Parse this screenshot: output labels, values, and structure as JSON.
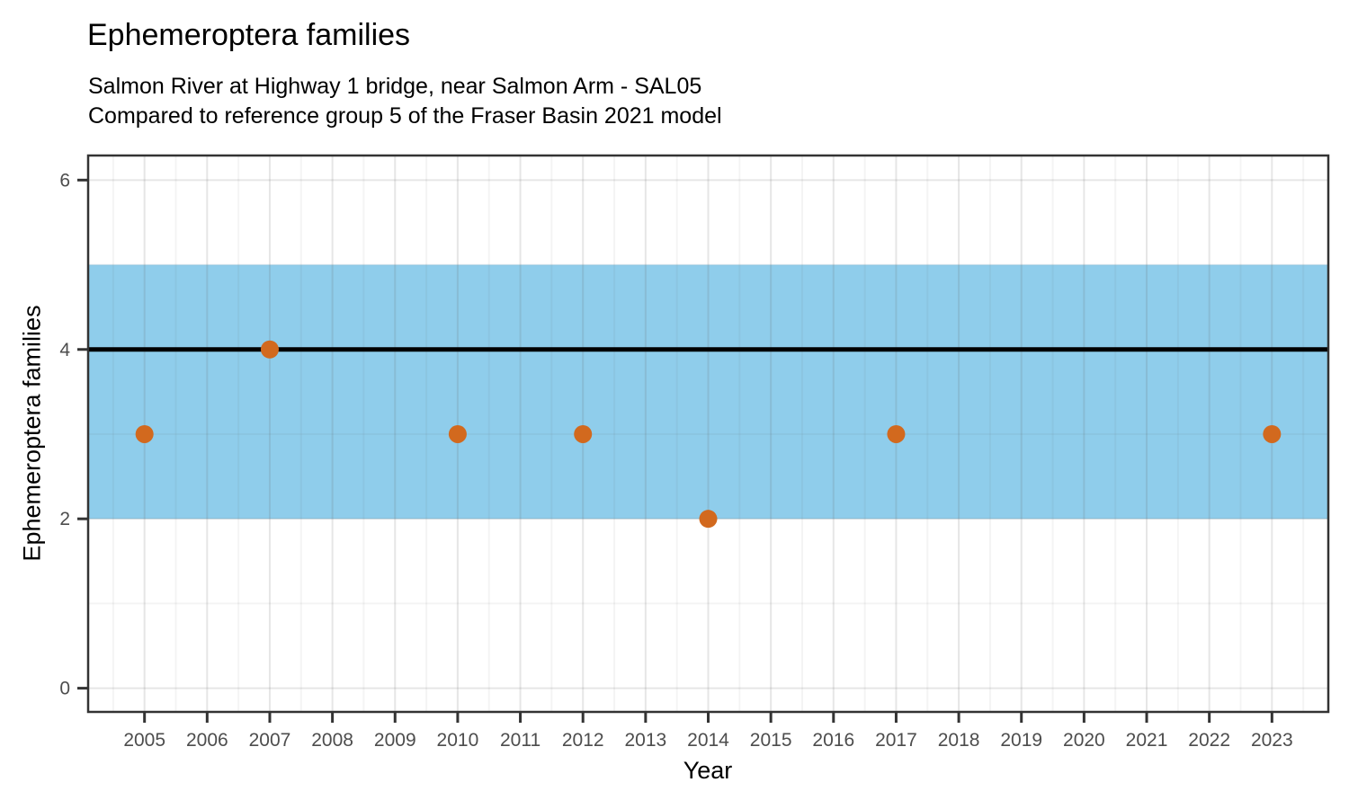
{
  "chart_data": {
    "type": "scatter",
    "title": "Ephemeroptera families",
    "subtitle": [
      "Salmon River at Highway 1 bridge, near Salmon Arm - SAL05",
      "Compared to reference group 5 of the Fraser Basin 2021 model"
    ],
    "xlabel": "Year",
    "ylabel": "Ephemeroptera families",
    "x_ticks": [
      2005,
      2006,
      2007,
      2008,
      2009,
      2010,
      2011,
      2012,
      2013,
      2014,
      2015,
      2016,
      2017,
      2018,
      2019,
      2020,
      2021,
      2022,
      2023
    ],
    "y_ticks": [
      0,
      2,
      4,
      6
    ],
    "xlim": [
      2004.1,
      2023.9
    ],
    "ylim": [
      -0.28,
      6.29
    ],
    "grid": {
      "major_vertical": "every year",
      "minor_vertical": "half years",
      "major_horizontal": [
        0,
        2,
        4,
        6
      ],
      "minor_horizontal": [
        1,
        3,
        5
      ]
    },
    "legend": "none",
    "points": [
      {
        "x": 2005,
        "y": 3
      },
      {
        "x": 2007,
        "y": 4
      },
      {
        "x": 2010,
        "y": 3
      },
      {
        "x": 2012,
        "y": 3
      },
      {
        "x": 2014,
        "y": 2
      },
      {
        "x": 2017,
        "y": 3
      },
      {
        "x": 2023,
        "y": 3
      }
    ],
    "reference_band": {
      "y_min": 2,
      "y_max": 5,
      "fill": "#8FCDEB"
    },
    "reference_line": {
      "y": 4,
      "color": "#000000"
    },
    "point_color": "#D2691E",
    "colors": {
      "panel_border": "#333333",
      "tick_mark": "#333333",
      "tick_label": "#4d4d4d",
      "grid_major": "rgba(100,100,100,0.16)",
      "grid_minor": "rgba(100,100,100,0.07)"
    }
  }
}
